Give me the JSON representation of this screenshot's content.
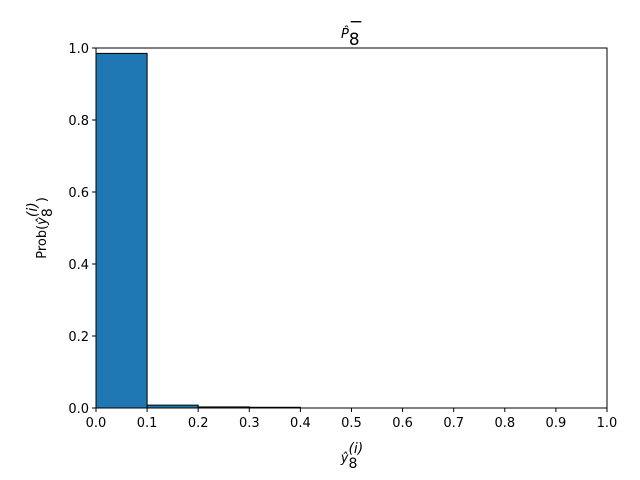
{
  "chart_data": {
    "type": "histogram",
    "title": {
      "base": "P̂",
      "sub": "8",
      "sup": "−"
    },
    "xlabel": {
      "base": "ŷ",
      "sub": "8",
      "sup": "(i)"
    },
    "ylabel": {
      "prefix": "Prob(",
      "base": "ŷ",
      "sub": "8",
      "sup": "(i)",
      "suffix": ")"
    },
    "bins": [
      0,
      0.1,
      0.2,
      0.3,
      0.4,
      0.5,
      0.6,
      0.7,
      0.8,
      0.9,
      1.0
    ],
    "values": [
      0.985,
      0.008,
      0.003,
      0.002,
      0,
      0,
      0,
      0,
      0,
      0
    ],
    "color": "#1f77b4",
    "edgecolor": "#000000",
    "xlim": [
      0,
      1
    ],
    "ylim": [
      0,
      1
    ],
    "xticks": [
      {
        "value": 0,
        "label": "0.0"
      },
      {
        "value": 0.1,
        "label": "0.1"
      },
      {
        "value": 0.2,
        "label": "0.2"
      },
      {
        "value": 0.3,
        "label": "0.3"
      },
      {
        "value": 0.4,
        "label": "0.4"
      },
      {
        "value": 0.5,
        "label": "0.5"
      },
      {
        "value": 0.6,
        "label": "0.6"
      },
      {
        "value": 0.7,
        "label": "0.7"
      },
      {
        "value": 0.8,
        "label": "0.8"
      },
      {
        "value": 0.9,
        "label": "0.9"
      },
      {
        "value": 1.0,
        "label": "1.0"
      }
    ],
    "yticks": [
      {
        "value": 0,
        "label": "0.0"
      },
      {
        "value": 0.2,
        "label": "0.2"
      },
      {
        "value": 0.4,
        "label": "0.4"
      },
      {
        "value": 0.6,
        "label": "0.6"
      },
      {
        "value": 0.8,
        "label": "0.8"
      },
      {
        "value": 1.0,
        "label": "1.0"
      }
    ],
    "grid": false
  }
}
